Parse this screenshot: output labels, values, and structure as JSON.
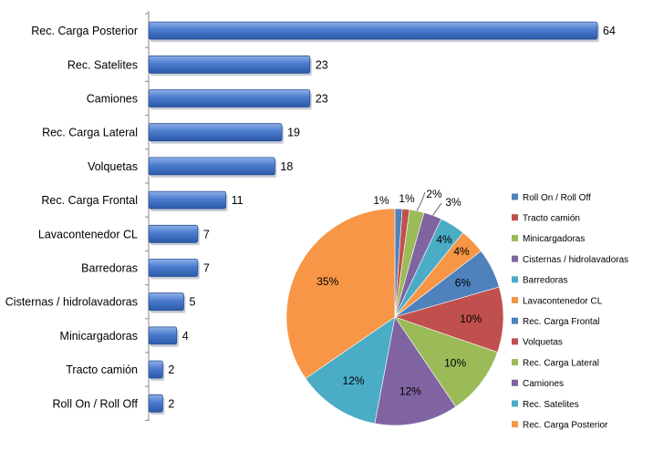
{
  "chart_data": [
    {
      "type": "bar",
      "orientation": "horizontal",
      "categories": [
        "Rec. Carga Posterior",
        "Rec. Satelites",
        "Camiones",
        "Rec. Carga Lateral",
        "Volquetas",
        "Rec. Carga Frontal",
        "Lavacontenedor CL",
        "Barredoras",
        "Cisternas / hidrolavadoras",
        "Minicargadoras",
        "Tracto camión",
        "Roll On / Roll Off"
      ],
      "values": [
        64,
        23,
        23,
        19,
        18,
        11,
        7,
        7,
        5,
        4,
        2,
        2
      ],
      "data_labels": [
        "64",
        "23",
        "23",
        "19",
        "18",
        "11",
        "7",
        "7",
        "5",
        "4",
        "2",
        "2"
      ],
      "bar_color": "#4a7bcd",
      "xlim": [
        0,
        64
      ],
      "grid": false
    },
    {
      "type": "pie",
      "categories": [
        "Roll On / Roll Off",
        "Tracto camión",
        "Minicargadoras",
        "Cisternas / hidrolavadoras",
        "Barredoras",
        "Lavacontenedor CL",
        "Rec. Carga Frontal",
        "Volquetas",
        "Rec. Carga Lateral",
        "Camiones",
        "Rec. Satelites",
        "Rec. Carga Posterior"
      ],
      "values": [
        2,
        2,
        4,
        5,
        7,
        7,
        11,
        18,
        19,
        23,
        23,
        64
      ],
      "labels": [
        "1%",
        "1%",
        "2%",
        "3%",
        "4%",
        "4%",
        "6%",
        "10%",
        "10%",
        "12%",
        "12%",
        "35%"
      ],
      "colors": [
        "#4f81bd",
        "#c0504d",
        "#9bbb59",
        "#8064a2",
        "#4bacc6",
        "#f79646",
        "#4f81bd",
        "#c0504d",
        "#9bbb59",
        "#8064a2",
        "#4bacc6",
        "#f79646"
      ],
      "legend_position": "right"
    }
  ]
}
